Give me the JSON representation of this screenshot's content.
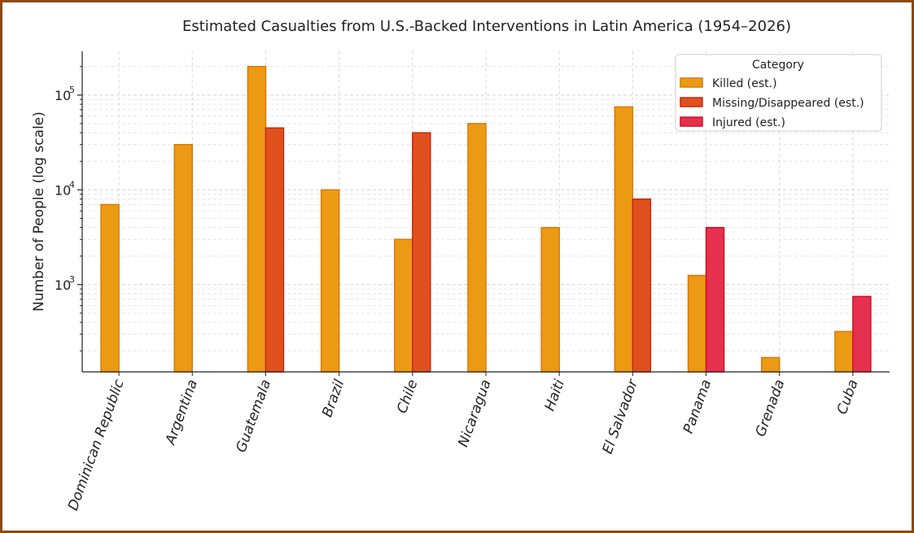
{
  "chart_data": {
    "type": "bar",
    "title": "Estimated Casualties from U.S.-Backed Interventions in Latin America (1954–2026)",
    "xlabel": "",
    "ylabel": "Number of People (log scale)",
    "yscale": "log",
    "ylim": [
      120,
      290000
    ],
    "yticks": [
      {
        "base": "10",
        "exp": "3",
        "value": 1000
      },
      {
        "base": "10",
        "exp": "4",
        "value": 10000
      },
      {
        "base": "10",
        "exp": "5",
        "value": 100000
      }
    ],
    "categories": [
      "Dominican Republic",
      "Argentina",
      "Guatemala",
      "Brazil",
      "Chile",
      "Nicaragua",
      "Haiti",
      "El Salvador",
      "Panama",
      "Grenada",
      "Cuba"
    ],
    "legend_title": "Category",
    "legend_position": "top-right",
    "series": [
      {
        "name": "Killed (est.)",
        "color": "#ec9a14",
        "edge": "#d9780a",
        "values": [
          7000,
          30000,
          200000,
          10000,
          3000,
          50000,
          4000,
          75000,
          1250,
          170,
          320
        ]
      },
      {
        "name": "Missing/Disappeared (est.)",
        "color": "#e0501f",
        "edge": "#c42a10",
        "values": [
          null,
          null,
          45000,
          null,
          40000,
          null,
          null,
          8000,
          null,
          null,
          null
        ]
      },
      {
        "name": "Injured (est.)",
        "color": "#e63050",
        "edge": "#d01020",
        "values": [
          null,
          null,
          null,
          null,
          null,
          null,
          null,
          null,
          4000,
          null,
          750
        ]
      }
    ]
  }
}
